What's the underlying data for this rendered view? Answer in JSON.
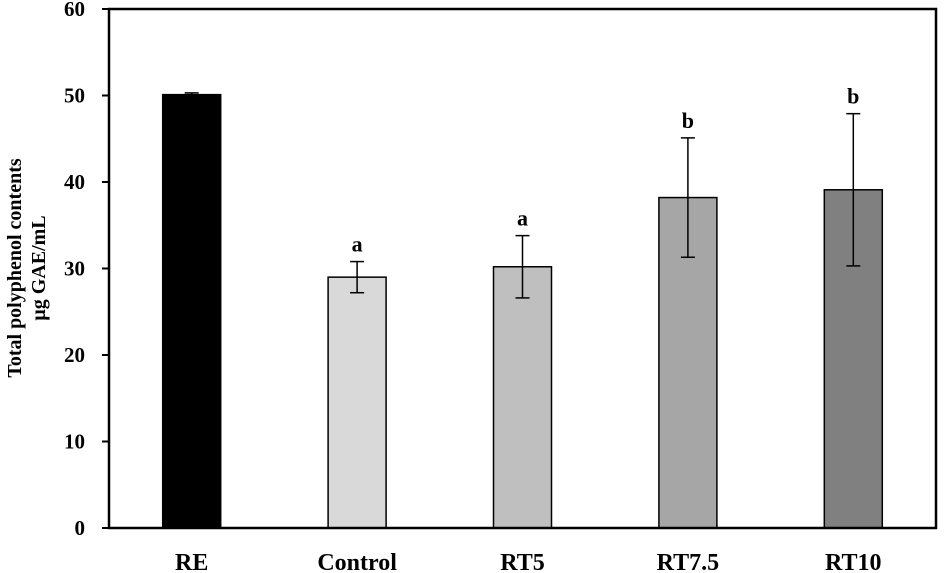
{
  "chart_data": {
    "type": "bar",
    "title": "",
    "xlabel": "",
    "ylabel": [
      "Total polyphenol contents",
      "μg GAE/mL"
    ],
    "ylim": [
      0,
      60
    ],
    "yticks": [
      "0",
      "10",
      "20",
      "30",
      "40",
      "50",
      "60"
    ],
    "grid": false,
    "legend": "none",
    "categories": [
      "RE",
      "Control",
      "RT5",
      "RT7.5",
      "RT10"
    ],
    "values": [
      50.1,
      29.0,
      30.2,
      38.2,
      39.1
    ],
    "errors": [
      0.2,
      1.8,
      3.6,
      6.9,
      8.8
    ],
    "significance": [
      "",
      "a",
      "a",
      "b",
      "b"
    ],
    "bar_colors": [
      "#000000",
      "#d9d9d9",
      "#bfbfbf",
      "#a6a6a6",
      "#808080"
    ]
  }
}
